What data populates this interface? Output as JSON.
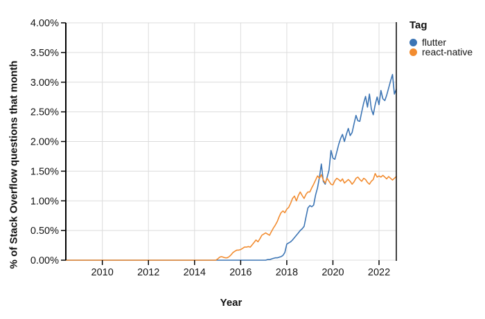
{
  "chart_data": {
    "type": "line",
    "xlabel": "Year",
    "ylabel": "% of Stack Overflow questions that month",
    "legend_title": "Tag",
    "legend_position": "top-right",
    "grid": true,
    "grid_color": "#dcdcdc",
    "axis_color": "#000000",
    "xlim": [
      2008.417,
      2022.75
    ],
    "ylim": [
      0,
      4
    ],
    "x_ticks": [
      {
        "value": 2010,
        "label": "2010"
      },
      {
        "value": 2012,
        "label": "2012"
      },
      {
        "value": 2014,
        "label": "2014"
      },
      {
        "value": 2016,
        "label": "2016"
      },
      {
        "value": 2018,
        "label": "2018"
      },
      {
        "value": 2020,
        "label": "2020"
      },
      {
        "value": 2022,
        "label": "2022"
      }
    ],
    "y_ticks": [
      {
        "value": 0.0,
        "label": "0.00%"
      },
      {
        "value": 0.5,
        "label": "0.50%"
      },
      {
        "value": 1.0,
        "label": "1.00%"
      },
      {
        "value": 1.5,
        "label": "1.50%"
      },
      {
        "value": 2.0,
        "label": "2.00%"
      },
      {
        "value": 2.5,
        "label": "2.50%"
      },
      {
        "value": 3.0,
        "label": "3.00%"
      },
      {
        "value": 3.5,
        "label": "3.50%"
      },
      {
        "value": 4.0,
        "label": "4.00%"
      }
    ],
    "x_step_months": 1,
    "series": [
      {
        "name": "flutter",
        "color": "#3b74b4",
        "zero_from": 2008.417,
        "values_start": 2017.0,
        "values": [
          0,
          0,
          0.01,
          0.01,
          0.02,
          0.03,
          0.04,
          0.04,
          0.05,
          0.06,
          0.08,
          0.13,
          0.27,
          0.29,
          0.31,
          0.34,
          0.38,
          0.42,
          0.46,
          0.5,
          0.53,
          0.57,
          0.73,
          0.88,
          0.92,
          0.9,
          0.93,
          1.1,
          1.22,
          1.4,
          1.62,
          1.33,
          1.28,
          1.4,
          1.52,
          1.85,
          1.72,
          1.7,
          1.82,
          1.95,
          2.05,
          2.12,
          2.0,
          2.12,
          2.22,
          2.1,
          2.15,
          2.3,
          2.44,
          2.35,
          2.34,
          2.5,
          2.65,
          2.76,
          2.58,
          2.8,
          2.55,
          2.45,
          2.62,
          2.75,
          2.62,
          2.86,
          2.72,
          2.69,
          2.78,
          2.9,
          3.02,
          3.13,
          2.8,
          2.88
        ]
      },
      {
        "name": "react-native",
        "color": "#f28c30",
        "zero_from": 2008.417,
        "values_start": 2014.9167,
        "values": [
          0,
          0.02,
          0.05,
          0.06,
          0.05,
          0.04,
          0.04,
          0.06,
          0.09,
          0.13,
          0.15,
          0.17,
          0.17,
          0.18,
          0.2,
          0.22,
          0.22,
          0.23,
          0.22,
          0.26,
          0.3,
          0.34,
          0.31,
          0.36,
          0.42,
          0.44,
          0.46,
          0.44,
          0.42,
          0.48,
          0.54,
          0.59,
          0.65,
          0.73,
          0.8,
          0.83,
          0.8,
          0.86,
          0.89,
          0.96,
          1.04,
          1.08,
          1.0,
          1.09,
          1.15,
          1.09,
          1.04,
          1.11,
          1.15,
          1.15,
          1.22,
          1.28,
          1.35,
          1.42,
          1.38,
          1.44,
          1.35,
          1.3,
          1.38,
          1.33,
          1.28,
          1.27,
          1.34,
          1.38,
          1.36,
          1.33,
          1.37,
          1.3,
          1.33,
          1.36,
          1.33,
          1.28,
          1.32,
          1.38,
          1.4,
          1.36,
          1.33,
          1.38,
          1.36,
          1.31,
          1.28,
          1.33,
          1.36,
          1.46,
          1.4,
          1.42,
          1.4,
          1.43,
          1.4,
          1.37,
          1.41,
          1.38,
          1.35,
          1.38,
          1.41
        ]
      }
    ]
  }
}
